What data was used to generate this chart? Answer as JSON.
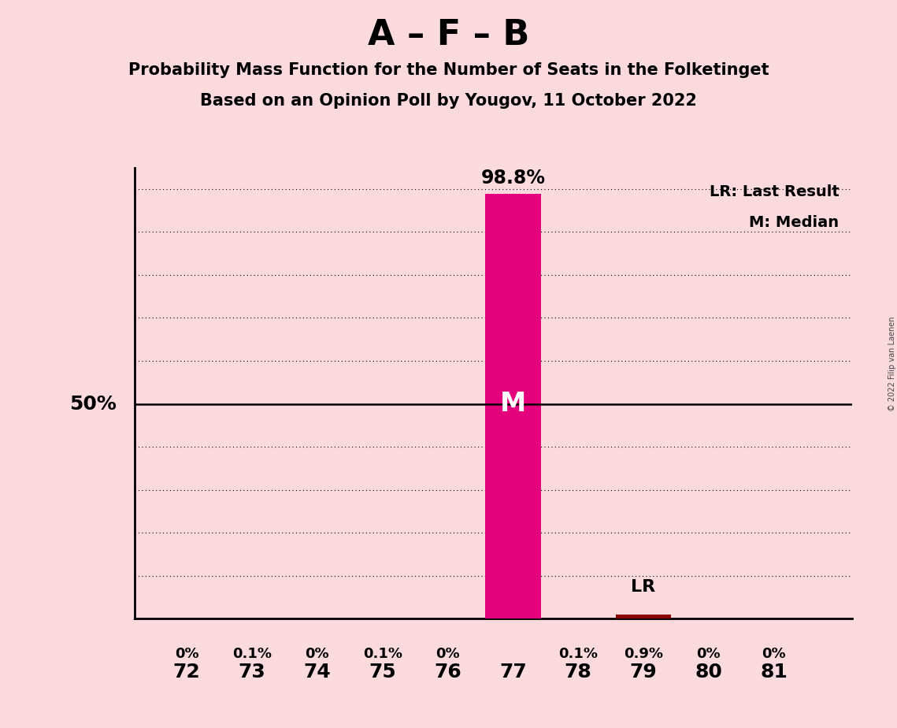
{
  "title": "A – F – B",
  "subtitle1": "Probability Mass Function for the Number of Seats in the Folketinget",
  "subtitle2": "Based on an Opinion Poll by Yougov, 11 October 2022",
  "seats": [
    72,
    73,
    74,
    75,
    76,
    77,
    78,
    79,
    80,
    81
  ],
  "probabilities": [
    0.0,
    0.1,
    0.0,
    0.1,
    0.0,
    98.8,
    0.1,
    0.9,
    0.0,
    0.0
  ],
  "prob_labels": [
    "0%",
    "0.1%",
    "0%",
    "0.1%",
    "0%",
    "98.8%",
    "0.1%",
    "0.9%",
    "0%",
    "0%"
  ],
  "bar_color_main": "#E5007D",
  "bar_color_lr": "#8B0000",
  "median_seat": 77,
  "lr_seat": 79,
  "background_color": "#FADADD",
  "text_color": "#000000",
  "ylim_max": 105,
  "legend_lr": "LR: Last Result",
  "legend_m": "M: Median",
  "watermark": "© 2022 Filip van Laenen",
  "grid_lines": [
    10,
    20,
    30,
    40,
    60,
    70,
    80,
    90,
    100
  ],
  "fifty_line": 50
}
